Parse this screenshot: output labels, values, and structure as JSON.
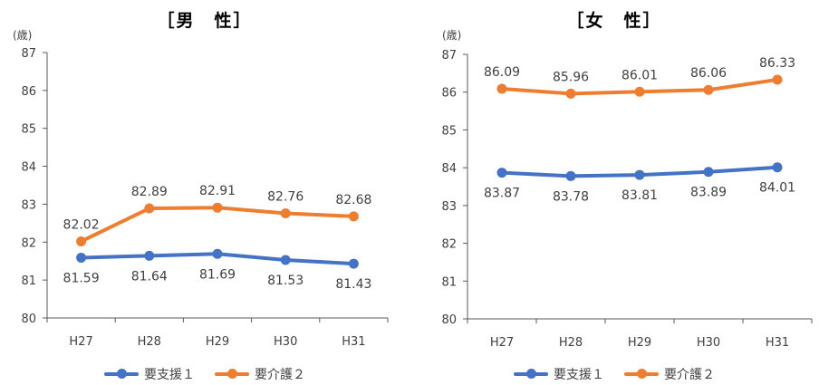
{
  "colors": {
    "series1": "#4472c4",
    "series2": "#ed7d31",
    "axis": "#595959"
  },
  "chart_data": [
    {
      "type": "line",
      "title": "［男　性］",
      "unit_label": "(歳)",
      "categories": [
        "H27",
        "H28",
        "H29",
        "H30",
        "H31"
      ],
      "ylim": [
        80,
        87
      ],
      "yticks": [
        "80",
        "81",
        "82",
        "83",
        "84",
        "85",
        "86",
        "87"
      ],
      "grid": false,
      "legend_position": "bottom",
      "series": [
        {
          "name": "要支援１",
          "values": [
            81.59,
            81.64,
            81.69,
            81.53,
            81.43
          ],
          "labels": [
            "81.59",
            "81.64",
            "81.69",
            "81.53",
            "81.43"
          ]
        },
        {
          "name": "要介護２",
          "values": [
            82.02,
            82.89,
            82.91,
            82.76,
            82.68
          ],
          "labels": [
            "82.02",
            "82.89",
            "82.91",
            "82.76",
            "82.68"
          ]
        }
      ]
    },
    {
      "type": "line",
      "title": "［女　性］",
      "unit_label": "(歳)",
      "categories": [
        "H27",
        "H28",
        "H29",
        "H30",
        "H31"
      ],
      "ylim": [
        80,
        87
      ],
      "yticks": [
        "80",
        "81",
        "82",
        "83",
        "84",
        "85",
        "86",
        "87"
      ],
      "grid": false,
      "legend_position": "bottom",
      "series": [
        {
          "name": "要支援１",
          "values": [
            83.87,
            83.78,
            83.81,
            83.89,
            84.01
          ],
          "labels": [
            "83.87",
            "83.78",
            "83.81",
            "83.89",
            "84.01"
          ]
        },
        {
          "name": "要介護２",
          "values": [
            86.09,
            85.96,
            86.01,
            86.06,
            86.33
          ],
          "labels": [
            "86.09",
            "85.96",
            "86.01",
            "86.06",
            "86.33"
          ]
        }
      ]
    }
  ]
}
